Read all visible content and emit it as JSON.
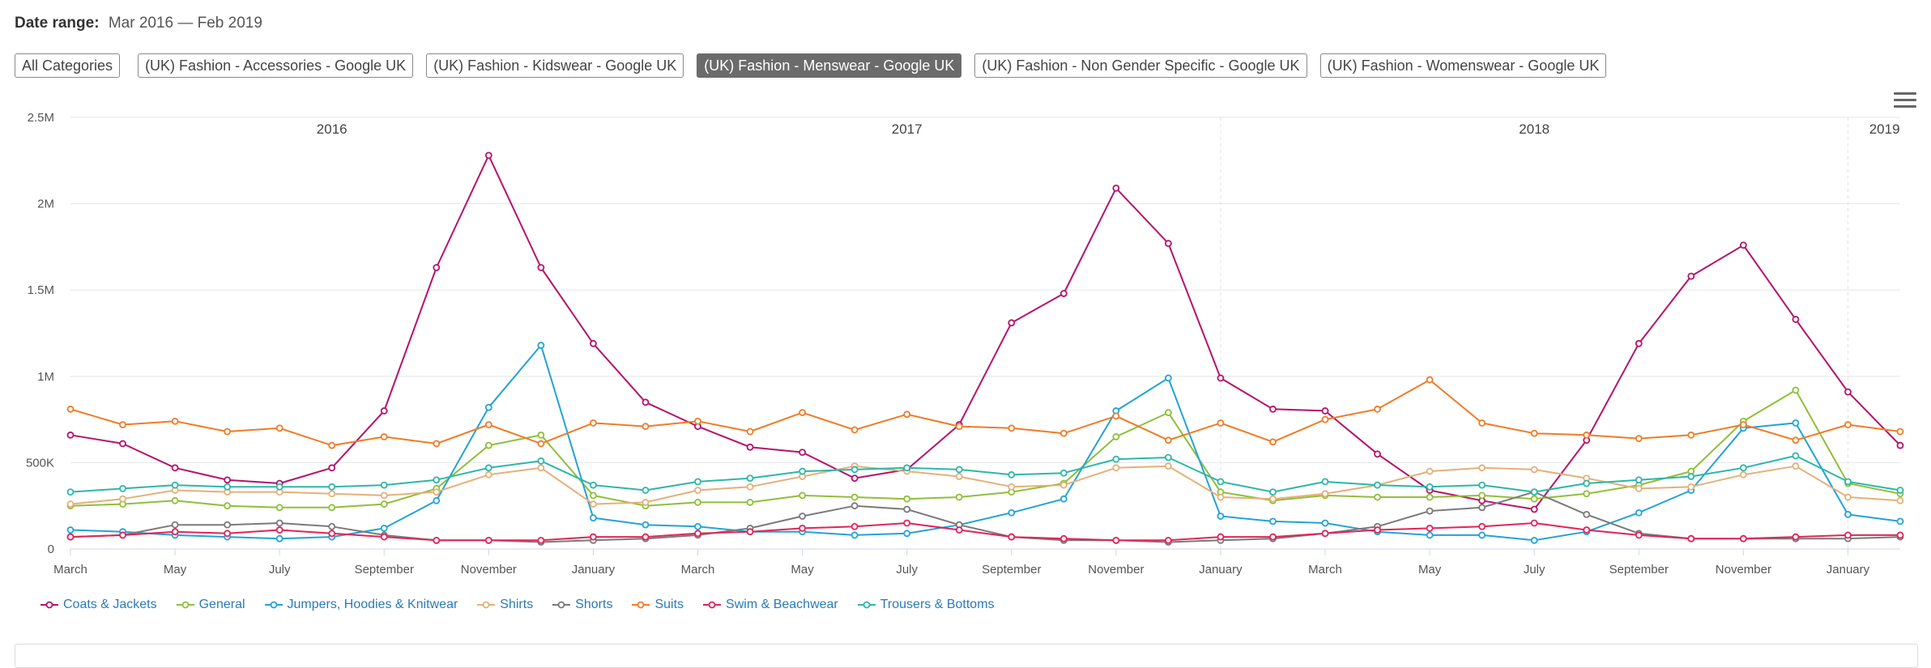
{
  "date_range": {
    "label": "Date range:",
    "value": "Mar 2016 — Feb 2019"
  },
  "filters": [
    {
      "label": "All Categories",
      "active": false
    },
    {
      "label": "(UK) Fashion - Accessories - Google UK",
      "active": false
    },
    {
      "label": "(UK) Fashion - Kidswear - Google UK",
      "active": false
    },
    {
      "label": "(UK) Fashion - Menswear - Google UK",
      "active": true
    },
    {
      "label": "(UK) Fashion - Non Gender Specific - Google UK",
      "active": false
    },
    {
      "label": "(UK) Fashion - Womenswear - Google UK",
      "active": false
    }
  ],
  "icons": {
    "menu": "hamburger-menu-icon"
  },
  "chart_data": {
    "type": "line",
    "title": "",
    "xlabel": "",
    "ylabel": "",
    "ylim": [
      0,
      2500000
    ],
    "y_ticks": [
      {
        "value": 0,
        "label": "0"
      },
      {
        "value": 500000,
        "label": "500K"
      },
      {
        "value": 1000000,
        "label": "1M"
      },
      {
        "value": 1500000,
        "label": "1.5M"
      },
      {
        "value": 2000000,
        "label": "2M"
      },
      {
        "value": 2500000,
        "label": "2.5M"
      }
    ],
    "x": [
      "2016-03",
      "2016-04",
      "2016-05",
      "2016-06",
      "2016-07",
      "2016-08",
      "2016-09",
      "2016-10",
      "2016-11",
      "2016-12",
      "2017-01",
      "2017-02",
      "2017-03",
      "2017-04",
      "2017-05",
      "2017-06",
      "2017-07",
      "2017-08",
      "2017-09",
      "2017-10",
      "2017-11",
      "2017-12",
      "2018-01",
      "2018-02",
      "2018-03",
      "2018-04",
      "2018-05",
      "2018-06",
      "2018-07",
      "2018-08",
      "2018-09",
      "2018-10",
      "2018-11",
      "2018-12",
      "2019-01",
      "2019-02"
    ],
    "x_tick_labels": [
      {
        "index": 0,
        "label": "March"
      },
      {
        "index": 2,
        "label": "May"
      },
      {
        "index": 4,
        "label": "July"
      },
      {
        "index": 6,
        "label": "September"
      },
      {
        "index": 8,
        "label": "November"
      },
      {
        "index": 10,
        "label": "January"
      },
      {
        "index": 12,
        "label": "March"
      },
      {
        "index": 14,
        "label": "May"
      },
      {
        "index": 16,
        "label": "July"
      },
      {
        "index": 18,
        "label": "September"
      },
      {
        "index": 20,
        "label": "November"
      },
      {
        "index": 22,
        "label": "January"
      },
      {
        "index": 24,
        "label": "March"
      },
      {
        "index": 26,
        "label": "May"
      },
      {
        "index": 28,
        "label": "July"
      },
      {
        "index": 30,
        "label": "September"
      },
      {
        "index": 32,
        "label": "November"
      },
      {
        "index": 34,
        "label": "January"
      }
    ],
    "year_labels": [
      {
        "label": "2016",
        "index": 5
      },
      {
        "label": "2017",
        "index": 16
      },
      {
        "label": "2018",
        "index": 28
      },
      {
        "label": "2019",
        "index": 34.7
      }
    ],
    "year_boundaries": [
      22,
      34
    ],
    "grid": true,
    "legend_position": "bottom-left",
    "series": [
      {
        "name": "Coats & Jackets",
        "color": "#b5136b",
        "values": [
          660000,
          610000,
          470000,
          400000,
          380000,
          470000,
          800000,
          1630000,
          2280000,
          1630000,
          1190000,
          850000,
          710000,
          590000,
          560000,
          410000,
          460000,
          720000,
          1310000,
          1480000,
          2090000,
          1770000,
          990000,
          810000,
          800000,
          550000,
          340000,
          280000,
          230000,
          630000,
          1190000,
          1580000,
          1760000,
          1330000,
          910000,
          600000
        ]
      },
      {
        "name": "General",
        "color": "#8fbf3a",
        "values": [
          250000,
          260000,
          280000,
          250000,
          240000,
          240000,
          260000,
          350000,
          600000,
          660000,
          310000,
          250000,
          270000,
          270000,
          310000,
          300000,
          290000,
          300000,
          330000,
          380000,
          650000,
          790000,
          330000,
          280000,
          310000,
          300000,
          300000,
          310000,
          290000,
          320000,
          370000,
          450000,
          740000,
          920000,
          380000,
          320000
        ]
      },
      {
        "name": "Jumpers, Hoodies & Knitwear",
        "color": "#22a3d6",
        "values": [
          110000,
          100000,
          80000,
          70000,
          60000,
          70000,
          120000,
          280000,
          820000,
          1180000,
          180000,
          140000,
          130000,
          100000,
          100000,
          80000,
          90000,
          140000,
          210000,
          290000,
          800000,
          990000,
          190000,
          160000,
          150000,
          100000,
          80000,
          80000,
          50000,
          100000,
          210000,
          340000,
          700000,
          730000,
          200000,
          160000
        ]
      },
      {
        "name": "Shirts",
        "color": "#e4b07a",
        "values": [
          260000,
          290000,
          340000,
          330000,
          330000,
          320000,
          310000,
          330000,
          430000,
          470000,
          260000,
          270000,
          340000,
          360000,
          420000,
          480000,
          450000,
          420000,
          360000,
          370000,
          470000,
          480000,
          300000,
          290000,
          320000,
          370000,
          450000,
          470000,
          460000,
          410000,
          350000,
          360000,
          430000,
          480000,
          300000,
          280000
        ]
      },
      {
        "name": "Shorts",
        "color": "#7a7a7a",
        "values": [
          70000,
          80000,
          140000,
          140000,
          150000,
          130000,
          80000,
          50000,
          50000,
          40000,
          50000,
          60000,
          80000,
          120000,
          190000,
          250000,
          230000,
          140000,
          70000,
          50000,
          50000,
          40000,
          50000,
          60000,
          90000,
          130000,
          220000,
          240000,
          330000,
          200000,
          90000,
          60000,
          60000,
          60000,
          60000,
          70000
        ]
      },
      {
        "name": "Suits",
        "color": "#f07b26",
        "values": [
          810000,
          720000,
          740000,
          680000,
          700000,
          600000,
          650000,
          610000,
          720000,
          610000,
          730000,
          710000,
          740000,
          680000,
          790000,
          690000,
          780000,
          710000,
          700000,
          670000,
          770000,
          630000,
          730000,
          620000,
          750000,
          810000,
          980000,
          730000,
          670000,
          660000,
          640000,
          660000,
          720000,
          630000,
          720000,
          680000
        ]
      },
      {
        "name": "Swim & Beachwear",
        "color": "#e0245a",
        "values": [
          70000,
          80000,
          100000,
          90000,
          110000,
          90000,
          70000,
          50000,
          50000,
          50000,
          70000,
          70000,
          90000,
          100000,
          120000,
          130000,
          150000,
          110000,
          70000,
          60000,
          50000,
          50000,
          70000,
          70000,
          90000,
          110000,
          120000,
          130000,
          150000,
          110000,
          80000,
          60000,
          60000,
          70000,
          80000,
          80000
        ]
      },
      {
        "name": "Trousers & Bottoms",
        "color": "#2cb7a8",
        "values": [
          330000,
          350000,
          370000,
          360000,
          360000,
          360000,
          370000,
          400000,
          470000,
          510000,
          370000,
          340000,
          390000,
          410000,
          450000,
          460000,
          470000,
          460000,
          430000,
          440000,
          520000,
          530000,
          390000,
          330000,
          390000,
          370000,
          360000,
          370000,
          330000,
          380000,
          400000,
          420000,
          470000,
          540000,
          390000,
          340000
        ]
      }
    ]
  }
}
